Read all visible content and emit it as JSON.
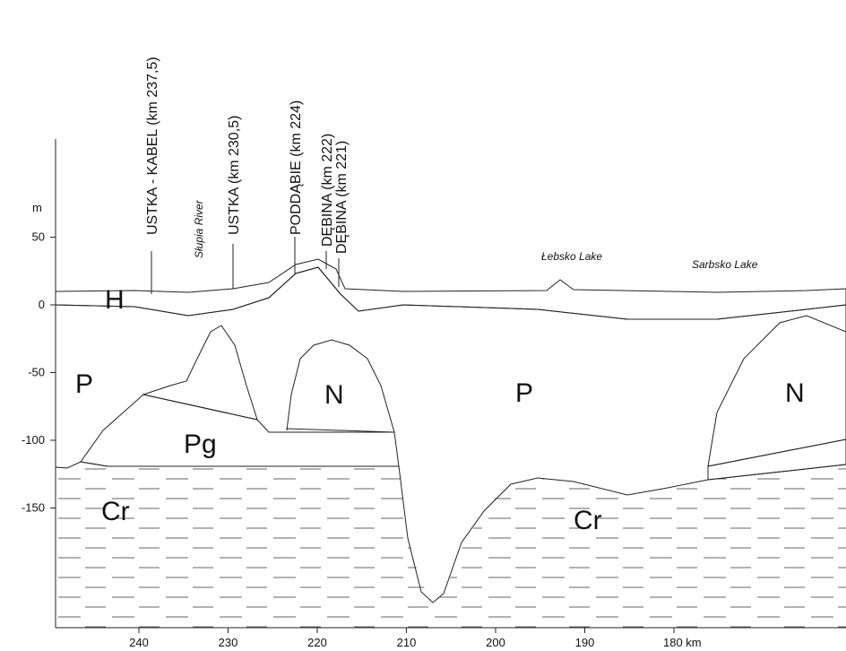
{
  "axes": {
    "y_unit": "m",
    "yticks": [
      50,
      0,
      -50,
      -100,
      -150
    ],
    "xticks": [
      240,
      230,
      220,
      210,
      200,
      190,
      {
        "value": 180,
        "label": "180 km"
      }
    ]
  },
  "stations": [
    "USTKA - KABEL (km 237,5)",
    "USTKA (km 230,5)",
    "PODDĄBIE (km 224)",
    "DĘBINA (km 222)",
    "DĘBINA (km 221)"
  ],
  "places": [
    "Słupia River",
    "Łebsko Lake",
    "Sarbsko Lake"
  ],
  "units": [
    "H",
    "P",
    "Pg",
    "Cr",
    "N",
    "P",
    "Cr",
    "N"
  ]
}
